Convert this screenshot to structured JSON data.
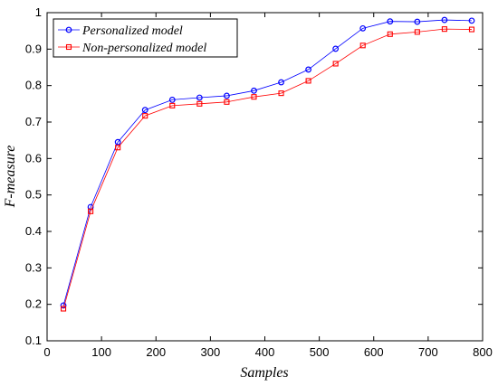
{
  "chart_data": {
    "type": "line",
    "title": "",
    "xlabel": "Samples",
    "ylabel": "F-measure",
    "xlim": [
      0,
      800
    ],
    "ylim": [
      0.1,
      1
    ],
    "xticks": [
      0,
      100,
      200,
      300,
      400,
      500,
      600,
      700,
      800
    ],
    "yticks": [
      0.1,
      0.2,
      0.3,
      0.4,
      0.5,
      0.6,
      0.7,
      0.8,
      0.9,
      1
    ],
    "ytick_labels": [
      "0.1",
      "0.2",
      "0.3",
      "0.4",
      "0.5",
      "0.6",
      "0.7",
      "0.8",
      "0.9",
      "1"
    ],
    "grid": false,
    "legend_position": "top-left",
    "x": [
      30,
      80,
      130,
      180,
      230,
      280,
      330,
      380,
      430,
      480,
      530,
      580,
      630,
      680,
      730,
      780
    ],
    "series": [
      {
        "name": "Personalized model",
        "color": "#0000ff",
        "marker": "circle",
        "values": [
          0.197,
          0.467,
          0.645,
          0.733,
          0.761,
          0.767,
          0.772,
          0.786,
          0.809,
          0.844,
          0.901,
          0.957,
          0.976,
          0.975,
          0.98,
          0.978
        ]
      },
      {
        "name": "Non-personalized model",
        "color": "#ff0000",
        "marker": "square",
        "values": [
          0.188,
          0.455,
          0.63,
          0.717,
          0.745,
          0.75,
          0.755,
          0.769,
          0.779,
          0.813,
          0.86,
          0.91,
          0.941,
          0.947,
          0.955,
          0.954
        ]
      }
    ]
  }
}
